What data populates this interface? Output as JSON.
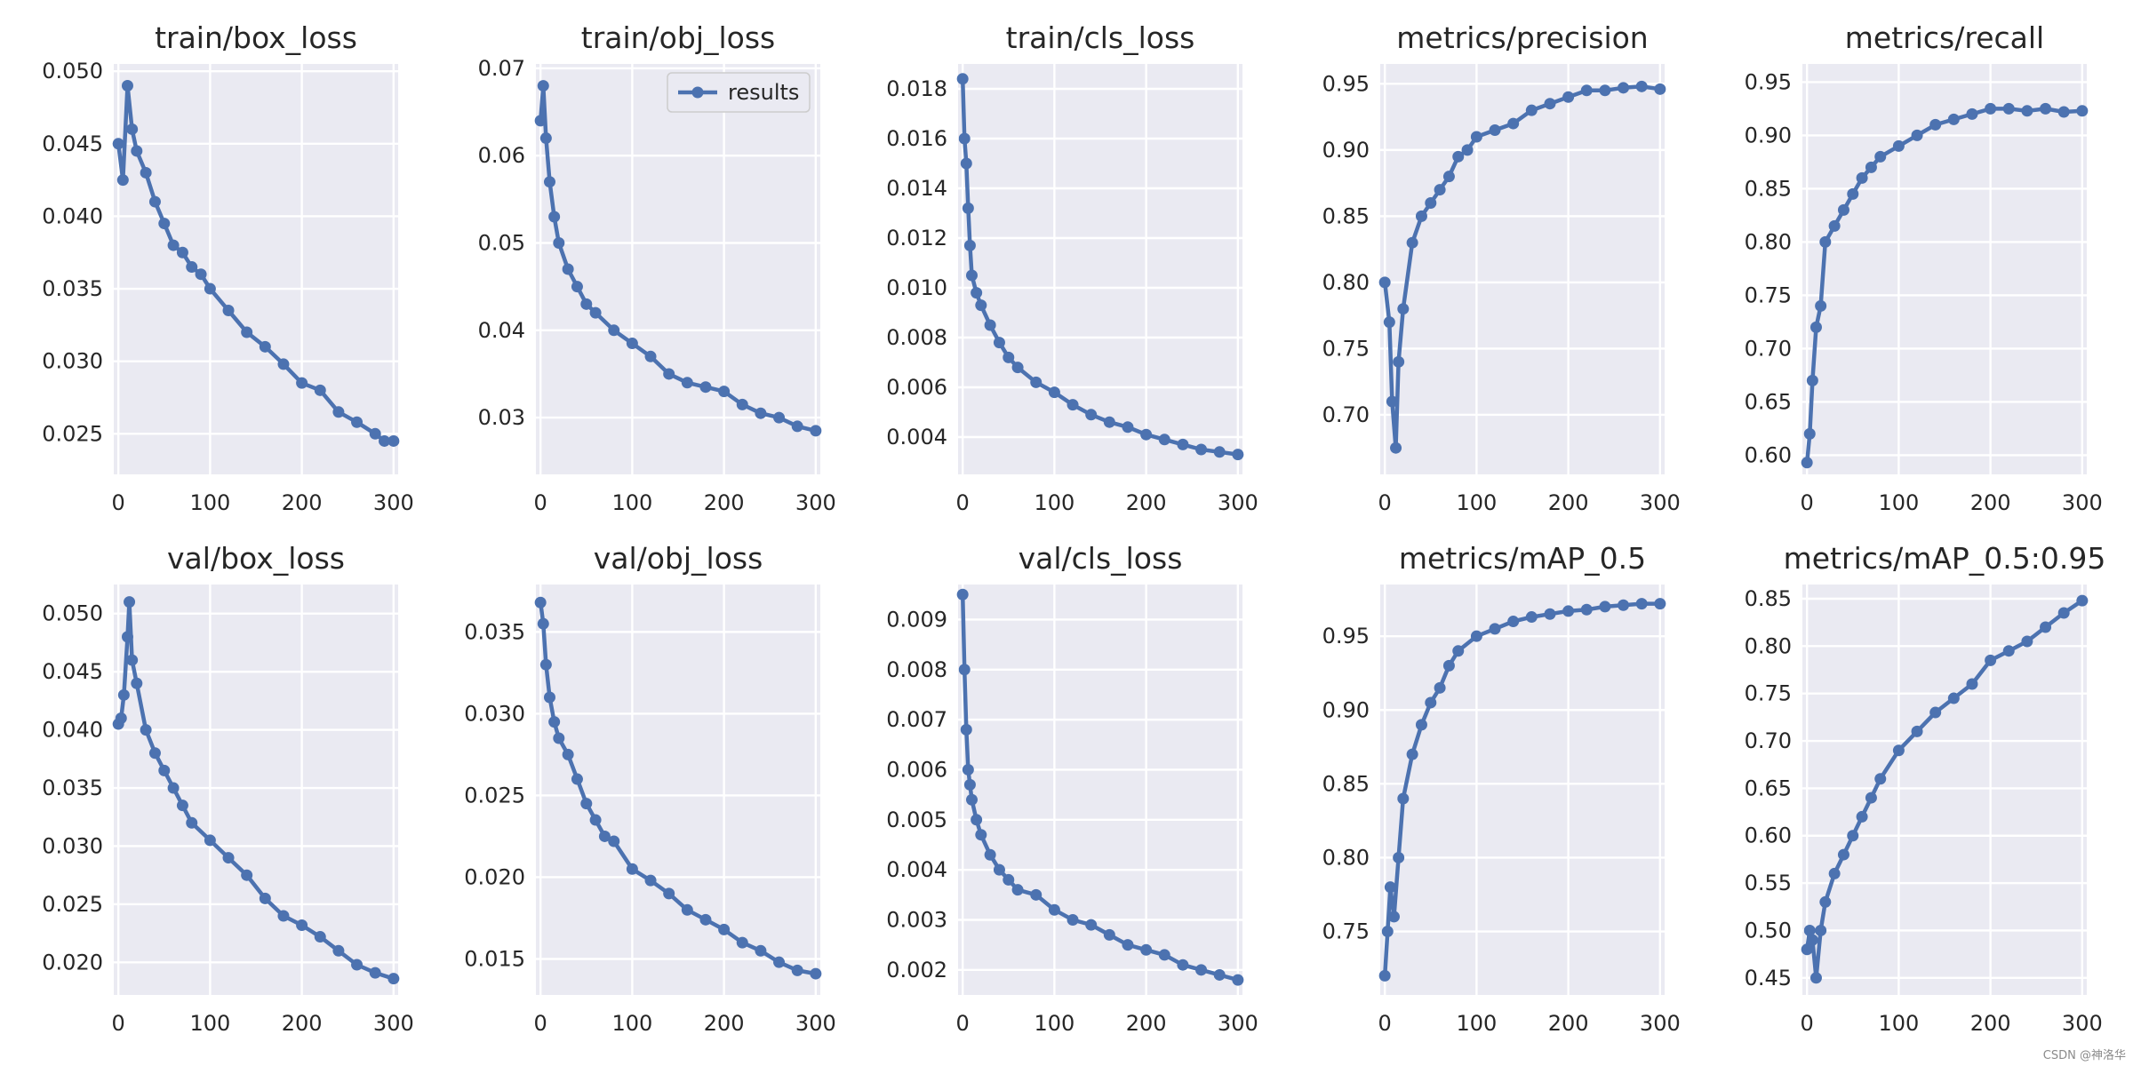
{
  "figure": {
    "background": "#ffffff",
    "axes_face": "#eaeaf2",
    "grid_color": "#ffffff",
    "line_color": "#4c72b0",
    "text_color": "#262626",
    "watermark": "CSDN @神洛华",
    "legend_label": "results"
  },
  "chart_data": [
    {
      "type": "line",
      "title": "train/box_loss",
      "xlim": [
        -5,
        305
      ],
      "ylim": [
        0.0222,
        0.0505
      ],
      "xticks": [
        0,
        100,
        200,
        300
      ],
      "yticks": [
        0.025,
        0.03,
        0.035,
        0.04,
        0.045,
        0.05
      ],
      "ytick_labels": [
        "0.025",
        "0.030",
        "0.035",
        "0.040",
        "0.045",
        "0.050"
      ],
      "series": [
        {
          "x": [
            0,
            5,
            10,
            15,
            20,
            30,
            40,
            50,
            60,
            70,
            80,
            90,
            100,
            120,
            140,
            160,
            180,
            200,
            220,
            240,
            260,
            280,
            290,
            300
          ],
          "y": [
            0.045,
            0.0425,
            0.049,
            0.046,
            0.0445,
            0.043,
            0.041,
            0.0395,
            0.038,
            0.0375,
            0.0365,
            0.036,
            0.035,
            0.0335,
            0.032,
            0.031,
            0.0298,
            0.0285,
            0.028,
            0.0265,
            0.0258,
            0.025,
            0.0245,
            0.0245
          ]
        }
      ]
    },
    {
      "type": "line",
      "title": "train/obj_loss",
      "xlim": [
        -5,
        305
      ],
      "ylim": [
        0.0235,
        0.0705
      ],
      "xticks": [
        0,
        100,
        200,
        300
      ],
      "yticks": [
        0.03,
        0.04,
        0.05,
        0.06,
        0.07
      ],
      "ytick_labels": [
        "0.03",
        "0.04",
        "0.05",
        "0.06",
        "0.07"
      ],
      "legend": {
        "entries": [
          "results"
        ],
        "position": "upper right"
      },
      "series": [
        {
          "name": "results",
          "x": [
            0,
            3,
            6,
            10,
            15,
            20,
            30,
            40,
            50,
            60,
            80,
            100,
            120,
            140,
            160,
            180,
            200,
            220,
            240,
            260,
            280,
            300
          ],
          "y": [
            0.064,
            0.068,
            0.062,
            0.057,
            0.053,
            0.05,
            0.047,
            0.045,
            0.043,
            0.042,
            0.04,
            0.0385,
            0.037,
            0.035,
            0.034,
            0.0335,
            0.033,
            0.0315,
            0.0305,
            0.03,
            0.029,
            0.0285
          ]
        }
      ]
    },
    {
      "type": "line",
      "title": "train/cls_loss",
      "xlim": [
        -5,
        305
      ],
      "ylim": [
        0.0025,
        0.019
      ],
      "xticks": [
        0,
        100,
        200,
        300
      ],
      "yticks": [
        0.004,
        0.006,
        0.008,
        0.01,
        0.012,
        0.014,
        0.016,
        0.018
      ],
      "ytick_labels": [
        "0.004",
        "0.006",
        "0.008",
        "0.010",
        "0.012",
        "0.014",
        "0.016",
        "0.018"
      ],
      "series": [
        {
          "x": [
            0,
            2,
            4,
            6,
            8,
            10,
            15,
            20,
            30,
            40,
            50,
            60,
            80,
            100,
            120,
            140,
            160,
            180,
            200,
            220,
            240,
            260,
            280,
            300
          ],
          "y": [
            0.0184,
            0.016,
            0.015,
            0.0132,
            0.0117,
            0.0105,
            0.0098,
            0.0093,
            0.0085,
            0.0078,
            0.0072,
            0.0068,
            0.0062,
            0.0058,
            0.0053,
            0.0049,
            0.0046,
            0.0044,
            0.0041,
            0.0039,
            0.0037,
            0.0035,
            0.0034,
            0.0033
          ]
        }
      ]
    },
    {
      "type": "line",
      "title": "metrics/precision",
      "xlim": [
        -5,
        305
      ],
      "ylim": [
        0.655,
        0.965
      ],
      "xticks": [
        0,
        100,
        200,
        300
      ],
      "yticks": [
        0.7,
        0.75,
        0.8,
        0.85,
        0.9,
        0.95
      ],
      "ytick_labels": [
        "0.70",
        "0.75",
        "0.80",
        "0.85",
        "0.90",
        "0.95"
      ],
      "series": [
        {
          "x": [
            0,
            5,
            8,
            12,
            15,
            20,
            30,
            40,
            50,
            60,
            70,
            80,
            90,
            100,
            120,
            140,
            160,
            180,
            200,
            220,
            240,
            260,
            280,
            300
          ],
          "y": [
            0.8,
            0.77,
            0.71,
            0.675,
            0.74,
            0.78,
            0.83,
            0.85,
            0.86,
            0.87,
            0.88,
            0.895,
            0.9,
            0.91,
            0.915,
            0.92,
            0.93,
            0.935,
            0.94,
            0.945,
            0.945,
            0.947,
            0.948,
            0.946
          ]
        }
      ]
    },
    {
      "type": "line",
      "title": "metrics/recall",
      "xlim": [
        -5,
        305
      ],
      "ylim": [
        0.582,
        0.967
      ],
      "xticks": [
        0,
        100,
        200,
        300
      ],
      "yticks": [
        0.6,
        0.65,
        0.7,
        0.75,
        0.8,
        0.85,
        0.9,
        0.95
      ],
      "ytick_labels": [
        "0.60",
        "0.65",
        "0.70",
        "0.75",
        "0.80",
        "0.85",
        "0.90",
        "0.95"
      ],
      "series": [
        {
          "x": [
            0,
            3,
            6,
            10,
            15,
            20,
            30,
            40,
            50,
            60,
            70,
            80,
            100,
            120,
            140,
            160,
            180,
            200,
            220,
            240,
            260,
            280,
            300
          ],
          "y": [
            0.593,
            0.62,
            0.67,
            0.72,
            0.74,
            0.8,
            0.815,
            0.83,
            0.845,
            0.86,
            0.87,
            0.88,
            0.89,
            0.9,
            0.91,
            0.915,
            0.92,
            0.925,
            0.925,
            0.923,
            0.925,
            0.922,
            0.923
          ]
        }
      ]
    },
    {
      "type": "line",
      "title": "val/box_loss",
      "xlim": [
        -5,
        305
      ],
      "ylim": [
        0.0172,
        0.0525
      ],
      "xticks": [
        0,
        100,
        200,
        300
      ],
      "yticks": [
        0.02,
        0.025,
        0.03,
        0.035,
        0.04,
        0.045,
        0.05
      ],
      "ytick_labels": [
        "0.020",
        "0.025",
        "0.030",
        "0.035",
        "0.040",
        "0.045",
        "0.050"
      ],
      "series": [
        {
          "x": [
            0,
            3,
            6,
            10,
            12,
            15,
            20,
            30,
            40,
            50,
            60,
            70,
            80,
            100,
            120,
            140,
            160,
            180,
            200,
            220,
            240,
            260,
            280,
            300
          ],
          "y": [
            0.0405,
            0.041,
            0.043,
            0.048,
            0.051,
            0.046,
            0.044,
            0.04,
            0.038,
            0.0365,
            0.035,
            0.0335,
            0.032,
            0.0305,
            0.029,
            0.0275,
            0.0255,
            0.024,
            0.0232,
            0.0222,
            0.021,
            0.0198,
            0.0191,
            0.0186
          ]
        }
      ]
    },
    {
      "type": "line",
      "title": "val/obj_loss",
      "xlim": [
        -5,
        305
      ],
      "ylim": [
        0.0128,
        0.0379
      ],
      "xticks": [
        0,
        100,
        200,
        300
      ],
      "yticks": [
        0.015,
        0.02,
        0.025,
        0.03,
        0.035
      ],
      "ytick_labels": [
        "0.015",
        "0.020",
        "0.025",
        "0.030",
        "0.035"
      ],
      "series": [
        {
          "x": [
            0,
            3,
            6,
            10,
            15,
            20,
            30,
            40,
            50,
            60,
            70,
            80,
            100,
            120,
            140,
            160,
            180,
            200,
            220,
            240,
            260,
            280,
            300
          ],
          "y": [
            0.0368,
            0.0355,
            0.033,
            0.031,
            0.0295,
            0.0285,
            0.0275,
            0.026,
            0.0245,
            0.0235,
            0.0225,
            0.0222,
            0.0205,
            0.0198,
            0.019,
            0.018,
            0.0174,
            0.0168,
            0.016,
            0.0155,
            0.0148,
            0.0143,
            0.0141
          ]
        }
      ]
    },
    {
      "type": "line",
      "title": "val/cls_loss",
      "xlim": [
        -5,
        305
      ],
      "ylim": [
        0.0015,
        0.0097
      ],
      "xticks": [
        0,
        100,
        200,
        300
      ],
      "yticks": [
        0.002,
        0.003,
        0.004,
        0.005,
        0.006,
        0.007,
        0.008,
        0.009
      ],
      "ytick_labels": [
        "0.002",
        "0.003",
        "0.004",
        "0.005",
        "0.006",
        "0.007",
        "0.008",
        "0.009"
      ],
      "series": [
        {
          "x": [
            0,
            2,
            4,
            6,
            8,
            10,
            15,
            20,
            30,
            40,
            50,
            60,
            80,
            100,
            120,
            140,
            160,
            180,
            200,
            220,
            240,
            260,
            280,
            300
          ],
          "y": [
            0.0095,
            0.008,
            0.0068,
            0.006,
            0.0057,
            0.0054,
            0.005,
            0.0047,
            0.0043,
            0.004,
            0.0038,
            0.0036,
            0.0035,
            0.0032,
            0.003,
            0.0029,
            0.0027,
            0.0025,
            0.0024,
            0.0023,
            0.0021,
            0.002,
            0.0019,
            0.0018
          ]
        }
      ]
    },
    {
      "type": "line",
      "title": "metrics/mAP_0.5",
      "xlim": [
        -5,
        305
      ],
      "ylim": [
        0.707,
        0.985
      ],
      "xticks": [
        0,
        100,
        200,
        300
      ],
      "yticks": [
        0.75,
        0.8,
        0.85,
        0.9,
        0.95
      ],
      "ytick_labels": [
        "0.75",
        "0.80",
        "0.85",
        "0.90",
        "0.95"
      ],
      "series": [
        {
          "x": [
            0,
            3,
            6,
            10,
            15,
            20,
            30,
            40,
            50,
            60,
            70,
            80,
            100,
            120,
            140,
            160,
            180,
            200,
            220,
            240,
            260,
            280,
            300
          ],
          "y": [
            0.72,
            0.75,
            0.78,
            0.76,
            0.8,
            0.84,
            0.87,
            0.89,
            0.905,
            0.915,
            0.93,
            0.94,
            0.95,
            0.955,
            0.96,
            0.963,
            0.965,
            0.967,
            0.968,
            0.97,
            0.971,
            0.972,
            0.972
          ]
        }
      ]
    },
    {
      "type": "line",
      "title": "metrics/mAP_0.5:0.95",
      "xlim": [
        -5,
        305
      ],
      "ylim": [
        0.432,
        0.865
      ],
      "xticks": [
        0,
        100,
        200,
        300
      ],
      "yticks": [
        0.45,
        0.5,
        0.55,
        0.6,
        0.65,
        0.7,
        0.75,
        0.8,
        0.85
      ],
      "ytick_labels": [
        "0.45",
        "0.50",
        "0.55",
        "0.60",
        "0.65",
        "0.70",
        "0.75",
        "0.80",
        "0.85"
      ],
      "series": [
        {
          "x": [
            0,
            3,
            6,
            10,
            15,
            20,
            30,
            40,
            50,
            60,
            70,
            80,
            100,
            120,
            140,
            160,
            180,
            200,
            220,
            240,
            260,
            280,
            300
          ],
          "y": [
            0.48,
            0.5,
            0.49,
            0.45,
            0.5,
            0.53,
            0.56,
            0.58,
            0.6,
            0.62,
            0.64,
            0.66,
            0.69,
            0.71,
            0.73,
            0.745,
            0.76,
            0.785,
            0.795,
            0.805,
            0.82,
            0.835,
            0.848
          ]
        }
      ]
    }
  ]
}
